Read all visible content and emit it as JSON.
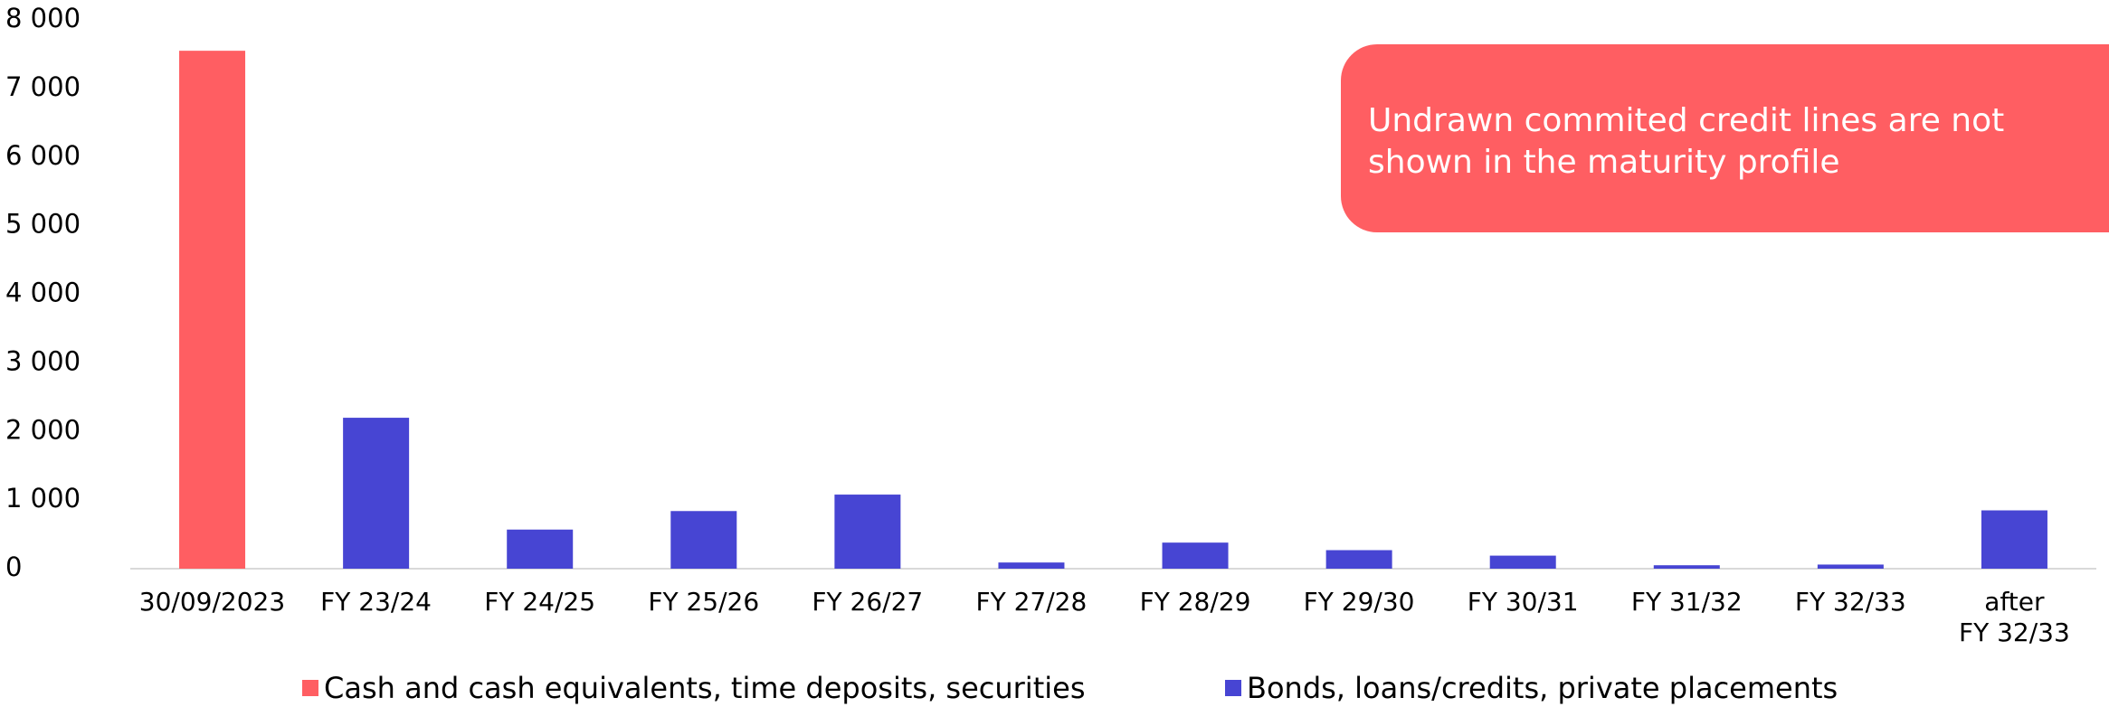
{
  "chart_data": {
    "type": "bar",
    "categories": [
      "30/09/2023",
      "FY 23/24",
      "FY 24/25",
      "FY 25/26",
      "FY 26/27",
      "FY 27/28",
      "FY 28/29",
      "FY 29/30",
      "FY 30/31",
      "FY 31/32",
      "FY 32/33",
      "after\nFY 32/33"
    ],
    "series": [
      {
        "name": "Cash and cash equivalents, time deposits, securities",
        "color": "#ff5e62",
        "values": [
          7550,
          null,
          null,
          null,
          null,
          null,
          null,
          null,
          null,
          null,
          null,
          null
        ]
      },
      {
        "name": "Bonds, loans/credits, private placements",
        "color": "#4745d3",
        "values": [
          null,
          2200,
          570,
          840,
          1080,
          90,
          380,
          270,
          190,
          50,
          60,
          850
        ]
      }
    ],
    "ylim": [
      0,
      8000
    ],
    "yticks": [
      0,
      {
        "value": 1000,
        "label": "1 000"
      },
      {
        "value": 2000,
        "label": "2 000"
      },
      {
        "value": 3000,
        "label": "3 000"
      },
      {
        "value": 4000,
        "label": "4 000"
      },
      {
        "value": 5000,
        "label": "5 000"
      },
      {
        "value": 6000,
        "label": "6 000"
      },
      {
        "value": 7000,
        "label": "7 000"
      },
      {
        "value": 8000,
        "label": "8 000"
      }
    ],
    "grid": false,
    "legend": "bottom",
    "annotation": "Undrawn commited credit lines are not shown in the maturity profile"
  }
}
